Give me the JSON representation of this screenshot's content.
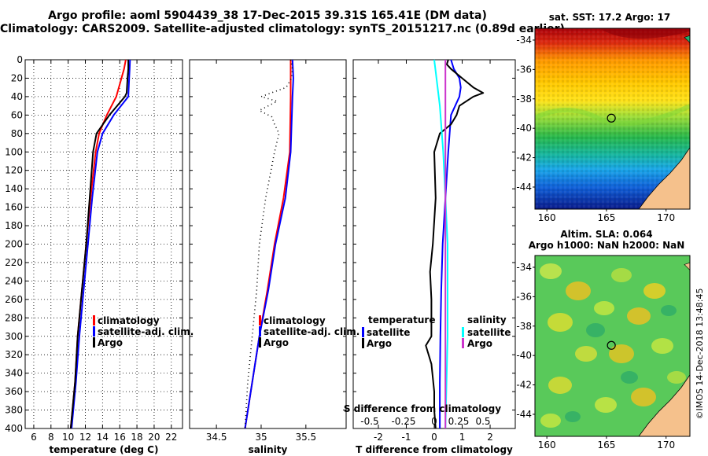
{
  "header": {
    "title_line1": "Argo profile: aoml 5904439_38 17-Dec-2015 39.31S 165.41E (DM data)",
    "title_line2": "Climatology: CARS2009. Satellite-adjusted climatology: synTS_20151217.nc (0.89d earlier)"
  },
  "colors": {
    "climatology": "#ff0000",
    "satellite": "#0000ff",
    "argo": "#000000",
    "sal_satellite": "#00ffff",
    "sal_argo": "#cc33cc"
  },
  "maps": {
    "sst_title": "sat. SST: 17.2 Argo: 17",
    "sla_title_line1": "Altim. SLA: 0.064",
    "sla_title_line2": "Argo h1000: NaN h2000: NaN",
    "lat_ticks": [
      -34,
      -36,
      -38,
      -40,
      -42,
      -44
    ],
    "lon_ticks": [
      160,
      165,
      170
    ],
    "lon_range": [
      159,
      172
    ],
    "lat_range": [
      -33.2,
      -45.5
    ],
    "argo_position": [
      165.41,
      -39.31
    ],
    "watermark": "©IMOS 14-Dec-2018 13:48:45"
  },
  "chart_data": [
    {
      "type": "line",
      "name": "temperature",
      "xlabel": "temperature (deg C)",
      "ylabel": "depth",
      "xlim": [
        5,
        23.3
      ],
      "ylim": [
        400,
        0
      ],
      "xticks": [
        6,
        8,
        10,
        12,
        14,
        16,
        18,
        20,
        22
      ],
      "yticks": [
        0,
        20,
        40,
        60,
        80,
        100,
        120,
        140,
        160,
        180,
        200,
        220,
        240,
        260,
        280,
        300,
        320,
        340,
        360,
        380,
        400
      ],
      "grid": true,
      "legend": [
        "climatology",
        "satellite-adj. clim.",
        "Argo"
      ],
      "legend_position": "bottom-right",
      "series": [
        {
          "name": "climatology",
          "color": "red",
          "depth": [
            0,
            10,
            20,
            40,
            60,
            80,
            100,
            150,
            200,
            250,
            300,
            350,
            400
          ],
          "values": [
            16.7,
            16.5,
            16.2,
            15.6,
            14.5,
            13.6,
            13.2,
            12.6,
            12.1,
            11.6,
            11.1,
            10.8,
            10.3
          ]
        },
        {
          "name": "satellite-adj. clim.",
          "color": "blue",
          "depth": [
            0,
            10,
            20,
            40,
            60,
            80,
            100,
            150,
            200,
            250,
            300,
            350,
            400
          ],
          "values": [
            17.2,
            17.15,
            17.1,
            17.0,
            15.3,
            14.0,
            13.4,
            12.8,
            12.3,
            11.8,
            11.3,
            10.9,
            10.4
          ]
        },
        {
          "name": "Argo",
          "color": "black",
          "depth": [
            0,
            10,
            20,
            36,
            40,
            60,
            80,
            100,
            150,
            200,
            250,
            300,
            350,
            400
          ],
          "values": [
            17.0,
            17.0,
            16.9,
            16.8,
            16.6,
            14.8,
            13.3,
            12.9,
            12.5,
            12.1,
            11.6,
            11.1,
            10.8,
            10.3
          ]
        }
      ]
    },
    {
      "type": "line",
      "name": "salinity",
      "xlabel": "salinity",
      "ylabel": "depth",
      "xlim": [
        34.2,
        35.95
      ],
      "ylim": [
        400,
        0
      ],
      "xticks": [
        34.5,
        35,
        35.5
      ],
      "grid": false,
      "legend": [
        "climatology",
        "satellite-adj. clim.",
        "Argo"
      ],
      "legend_position": "bottom-right",
      "series": [
        {
          "name": "climatology",
          "color": "red",
          "depth": [
            0,
            40,
            100,
            150,
            200,
            250,
            300,
            350,
            400
          ],
          "values": [
            35.33,
            35.33,
            35.32,
            35.25,
            35.15,
            35.07,
            34.98,
            34.9,
            34.82
          ]
        },
        {
          "name": "satellite-adj. clim.",
          "color": "blue",
          "depth": [
            0,
            20,
            40,
            100,
            150,
            200,
            250,
            300,
            350,
            400
          ],
          "values": [
            35.35,
            35.36,
            35.35,
            35.33,
            35.27,
            35.16,
            35.08,
            34.98,
            34.9,
            34.82
          ]
        },
        {
          "name": "Argo (dotted)",
          "color": "black",
          "depth": [
            0,
            10,
            20,
            30,
            40,
            45,
            55,
            62,
            70,
            80,
            100,
            150,
            200,
            250,
            300,
            350,
            400
          ],
          "values": [
            35.33,
            35.35,
            35.34,
            35.28,
            35.0,
            35.18,
            34.98,
            35.12,
            35.15,
            35.2,
            35.15,
            35.05,
            34.98,
            34.95,
            34.9,
            34.85,
            34.82
          ]
        }
      ]
    },
    {
      "type": "line",
      "name": "difference from climatology",
      "xlabel": "T difference from climatology",
      "xlabel_top": "S difference from climatology",
      "xlim": [
        -2.9,
        2.9
      ],
      "ylim": [
        400,
        0
      ],
      "xticks": [
        -2,
        -1,
        0,
        1,
        2
      ],
      "xticks_salinity": [
        "-0.5",
        "-0.25",
        "0",
        "0.25",
        "0.5"
      ],
      "legend_temperature": {
        "heading": "temperature",
        "items": [
          "satellite",
          "Argo"
        ]
      },
      "legend_salinity": {
        "heading": "salinity",
        "items": [
          "satellite",
          "Argo"
        ]
      },
      "series": [
        {
          "name": "temperature satellite",
          "color": "blue",
          "depth": [
            0,
            10,
            20,
            30,
            40,
            60,
            100,
            150,
            200,
            250,
            300,
            350,
            400
          ],
          "values": [
            0.6,
            0.7,
            0.9,
            0.95,
            0.9,
            0.6,
            0.5,
            0.4,
            0.3,
            0.25,
            0.22,
            0.2,
            0.2
          ]
        },
        {
          "name": "temperature Argo",
          "color": "black",
          "depth": [
            0,
            5,
            10,
            20,
            30,
            36,
            40,
            50,
            60,
            70,
            80,
            100,
            150,
            200,
            230,
            260,
            300,
            310,
            330,
            360,
            380,
            400
          ],
          "values": [
            0.5,
            0.45,
            0.6,
            1.0,
            1.4,
            1.75,
            1.4,
            0.9,
            0.8,
            0.6,
            0.2,
            0.0,
            0.05,
            -0.05,
            -0.15,
            -0.1,
            -0.1,
            -0.3,
            -0.1,
            0.0,
            0.0,
            0.05
          ]
        },
        {
          "name": "salinity satellite",
          "color": "cyan",
          "depth": [
            0,
            50,
            100,
            200,
            300,
            400
          ],
          "values": [
            0.0,
            0.05,
            0.08,
            0.12,
            0.12,
            0.1
          ]
        },
        {
          "name": "salinity Argo",
          "color": "purple",
          "depth": [
            0,
            400
          ],
          "values": [
            0.1,
            0.1
          ]
        }
      ]
    }
  ]
}
